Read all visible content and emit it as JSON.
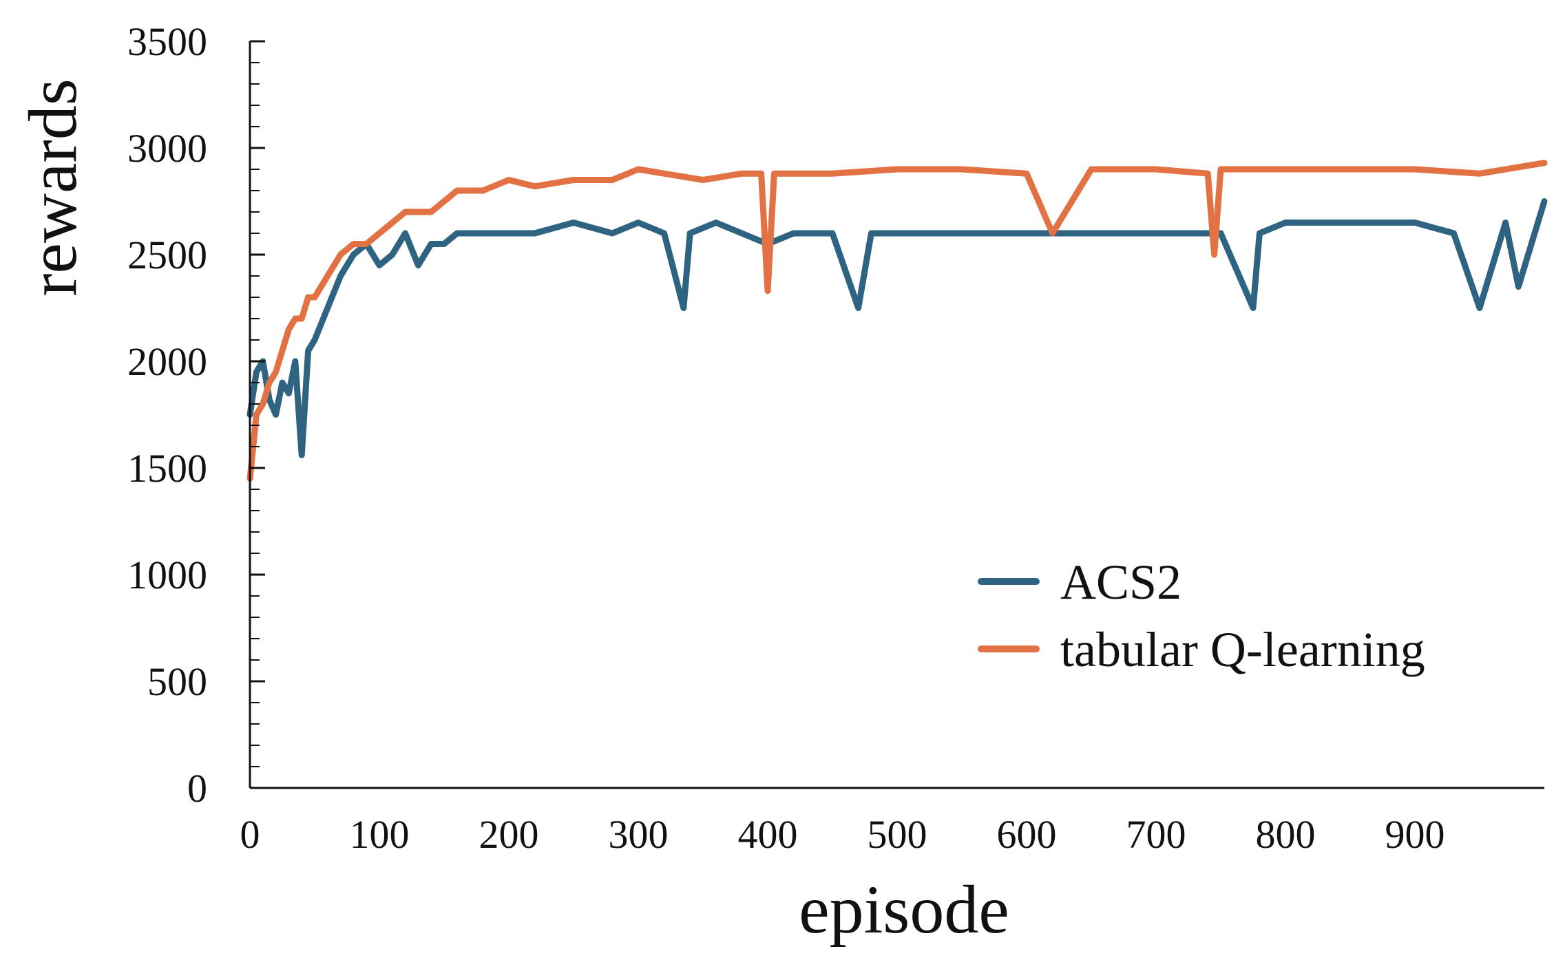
{
  "chart_data": {
    "type": "line",
    "title": "",
    "xlabel": "episode",
    "ylabel": "rewards",
    "xlim": [
      0,
      1000
    ],
    "ylim": [
      0,
      3500
    ],
    "x_ticks": [
      0,
      100,
      200,
      300,
      400,
      500,
      600,
      700,
      800,
      900
    ],
    "x_tick_labels": [
      "0",
      "100",
      "200",
      "300",
      "400",
      "500",
      "600",
      "700",
      "800",
      "900"
    ],
    "y_ticks": [
      0,
      500,
      1000,
      1500,
      2000,
      2500,
      3000,
      3500
    ],
    "y_tick_labels": [
      "0",
      "500",
      "1000",
      "1500",
      "2000",
      "2500",
      "3000",
      "3500"
    ],
    "grid": false,
    "legend_position": "lower-right",
    "series": [
      {
        "name": "ACS2",
        "color": "#2e6382",
        "x": [
          0,
          5,
          10,
          15,
          20,
          25,
          30,
          35,
          40,
          45,
          50,
          60,
          70,
          80,
          90,
          100,
          110,
          120,
          130,
          140,
          150,
          160,
          180,
          200,
          220,
          250,
          280,
          300,
          320,
          335,
          340,
          360,
          380,
          400,
          420,
          450,
          470,
          480,
          500,
          520,
          550,
          580,
          600,
          620,
          650,
          700,
          720,
          750,
          775,
          780,
          800,
          850,
          900,
          930,
          950,
          970,
          980,
          1000
        ],
        "y": [
          1750,
          1950,
          2000,
          1820,
          1750,
          1900,
          1850,
          2000,
          1560,
          2050,
          2100,
          2250,
          2400,
          2500,
          2550,
          2450,
          2500,
          2600,
          2450,
          2550,
          2550,
          2600,
          2600,
          2600,
          2600,
          2650,
          2600,
          2650,
          2600,
          2250,
          2600,
          2650,
          2600,
          2550,
          2600,
          2600,
          2250,
          2600,
          2600,
          2600,
          2600,
          2600,
          2600,
          2600,
          2600,
          2600,
          2600,
          2600,
          2250,
          2600,
          2650,
          2650,
          2650,
          2600,
          2250,
          2650,
          2350,
          2750
        ]
      },
      {
        "name": "tabular Q-learning",
        "color": "#e27143",
        "x": [
          0,
          5,
          10,
          15,
          20,
          25,
          30,
          35,
          40,
          45,
          50,
          60,
          70,
          80,
          90,
          100,
          110,
          120,
          130,
          140,
          150,
          160,
          180,
          200,
          220,
          250,
          280,
          300,
          320,
          350,
          380,
          395,
          400,
          405,
          420,
          450,
          500,
          550,
          600,
          620,
          650,
          700,
          740,
          745,
          750,
          800,
          850,
          900,
          950,
          1000
        ],
        "y": [
          1450,
          1750,
          1800,
          1900,
          1950,
          2050,
          2150,
          2200,
          2200,
          2300,
          2300,
          2400,
          2500,
          2550,
          2550,
          2600,
          2650,
          2700,
          2700,
          2700,
          2750,
          2800,
          2800,
          2850,
          2820,
          2850,
          2850,
          2900,
          2880,
          2850,
          2880,
          2880,
          2330,
          2880,
          2880,
          2880,
          2900,
          2900,
          2880,
          2600,
          2900,
          2900,
          2880,
          2500,
          2900,
          2900,
          2900,
          2900,
          2880,
          2930
        ]
      }
    ]
  }
}
